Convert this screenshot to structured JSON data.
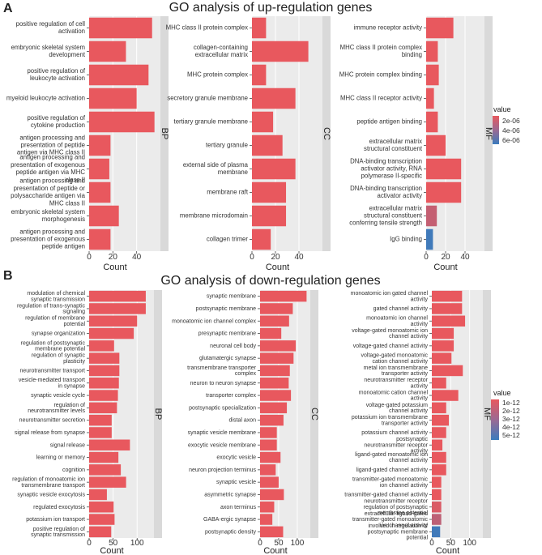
{
  "sections": [
    {
      "label": "A",
      "title": "GO analysis of up-regulation genes",
      "legend": {
        "title": "q value",
        "labels": [
          "2e-06",
          "4e-06",
          "6e-06"
        ]
      },
      "color_low": "#e8585e",
      "color_high": "#3b7bbd",
      "panels": [
        {
          "strip": "BP",
          "xlabel": "Count",
          "xticks": [
            0,
            20,
            40
          ],
          "xlim": [
            0,
            60
          ],
          "bars": [
            {
              "label": "positive regulation of cell\nactivation",
              "value": 53,
              "q": 5e-08
            },
            {
              "label": "embryonic skeletal system\ndevelopment",
              "value": 31,
              "q": 5e-08
            },
            {
              "label": "positive regulation of\nleukocyte activation",
              "value": 50,
              "q": 5e-08
            },
            {
              "label": "myeloid leukocyte activation",
              "value": 40,
              "q": 5e-08
            },
            {
              "label": "positive regulation of\ncytokine production",
              "value": 55,
              "q": 5e-08
            },
            {
              "label": "antigen processing and\npresentation of peptide\nantigen via MHC class II",
              "value": 18,
              "q": 5e-08
            },
            {
              "label": "antigen processing and\npresentation of exogenous\npeptide antigen via MHC\nclass II",
              "value": 17,
              "q": 5e-08
            },
            {
              "label": "antigen processing and\npresentation of peptide or\npolysaccharide antigen via\nMHC class II",
              "value": 18,
              "q": 5e-08
            },
            {
              "label": "embryonic skeletal system\nmorphogenesis",
              "value": 25,
              "q": 5e-08
            },
            {
              "label": "antigen processing and\npresentation of exogenous\npeptide antigen",
              "value": 18,
              "q": 5e-08
            }
          ]
        },
        {
          "strip": "CC",
          "xlabel": "Count",
          "xticks": [
            0,
            20,
            40
          ],
          "xlim": [
            0,
            60
          ],
          "bars": [
            {
              "label": "MHC class II protein complex",
              "value": 12,
              "q": 5e-08
            },
            {
              "label": "collagen-containing\nextracellular matrix",
              "value": 48,
              "q": 5e-08
            },
            {
              "label": "MHC protein complex",
              "value": 12,
              "q": 5e-08
            },
            {
              "label": "secretory granule membrane",
              "value": 37,
              "q": 5e-08
            },
            {
              "label": "tertiary granule membrane",
              "value": 18,
              "q": 5e-08
            },
            {
              "label": "tertiary granule",
              "value": 26,
              "q": 5e-08
            },
            {
              "label": "external side of plasma\nmembrane",
              "value": 37,
              "q": 5e-08
            },
            {
              "label": "membrane raft",
              "value": 29,
              "q": 5e-08
            },
            {
              "label": "membrane microdomain",
              "value": 29,
              "q": 5e-08
            },
            {
              "label": "collagen trimer",
              "value": 16,
              "q": 5e-08
            }
          ]
        },
        {
          "strip": "MF",
          "xlabel": "Count",
          "xticks": [
            0,
            20,
            40
          ],
          "xlim": [
            0,
            60
          ],
          "bars": [
            {
              "label": "immune receptor activity",
              "value": 28,
              "q": 5e-08
            },
            {
              "label": "MHC class II protein complex\nbinding",
              "value": 12,
              "q": 5e-08
            },
            {
              "label": "MHC protein complex binding",
              "value": 13,
              "q": 5e-08
            },
            {
              "label": "MHC class II receptor activity",
              "value": 8,
              "q": 5e-08
            },
            {
              "label": "peptide antigen binding",
              "value": 12,
              "q": 5e-08
            },
            {
              "label": "extracellular matrix\nstructural constituent",
              "value": 20,
              "q": 5e-08
            },
            {
              "label": "DNA-binding transcription\nactivator activity, RNA\npolymerase II-specific",
              "value": 36,
              "q": 5e-08
            },
            {
              "label": "DNA-binding transcription\nactivator activity",
              "value": 36,
              "q": 5e-08
            },
            {
              "label": "extracellular matrix\nstructural constituent\nconferring tensile strength",
              "value": 11,
              "q": 1.5e-06
            },
            {
              "label": "IgG binding",
              "value": 7,
              "q": 6.8e-06
            }
          ]
        }
      ]
    },
    {
      "label": "B",
      "title": "GO analysis of down-regulation genes",
      "legend": {
        "title": "q value",
        "labels": [
          "1e-12",
          "2e-12",
          "3e-12",
          "4e-12",
          "5e-12"
        ]
      },
      "color_low": "#e8585e",
      "color_high": "#3b7bbd",
      "panels": [
        {
          "strip": "BP",
          "xlabel": "Count",
          "xticks": [
            0,
            50,
            100
          ],
          "xlim": [
            0,
            135
          ],
          "bars": [
            {
              "label": "modulation of chemical\nsynaptic transmission",
              "value": 118,
              "q": 1e-14
            },
            {
              "label": "regulation of trans-synaptic\nsignaling",
              "value": 118,
              "q": 1e-14
            },
            {
              "label": "regulation of membrane\npotential",
              "value": 100,
              "q": 1e-14
            },
            {
              "label": "synapse organization",
              "value": 93,
              "q": 1e-14
            },
            {
              "label": "regulation of postsynaptic\nmembrane potential",
              "value": 52,
              "q": 1e-14
            },
            {
              "label": "regulation of synaptic\nplasticity",
              "value": 63,
              "q": 1e-14
            },
            {
              "label": "neurotransmitter transport",
              "value": 63,
              "q": 1e-14
            },
            {
              "label": "vesicle-mediated transport\nin synapse",
              "value": 62,
              "q": 1e-14
            },
            {
              "label": "synaptic vesicle cycle",
              "value": 60,
              "q": 1e-14
            },
            {
              "label": "regulation of\nneurotransmitter levels",
              "value": 58,
              "q": 1e-14
            },
            {
              "label": "neurotransmitter secretion",
              "value": 47,
              "q": 1e-14
            },
            {
              "label": "signal release from synapse",
              "value": 47,
              "q": 1e-14
            },
            {
              "label": "signal release",
              "value": 85,
              "q": 1e-14
            },
            {
              "label": "learning or memory",
              "value": 61,
              "q": 1e-14
            },
            {
              "label": "cognition",
              "value": 66,
              "q": 1e-14
            },
            {
              "label": "regulation of monoatomic ion\ntransmembrane transport",
              "value": 77,
              "q": 1e-14
            },
            {
              "label": "synaptic vesicle exocytosis",
              "value": 37,
              "q": 1e-14
            },
            {
              "label": "regulated exocytosis",
              "value": 51,
              "q": 1e-14
            },
            {
              "label": "potassium ion transport",
              "value": 53,
              "q": 1e-14
            },
            {
              "label": "positive regulation of\nsynaptic transmission",
              "value": 46,
              "q": 1e-14
            }
          ]
        },
        {
          "strip": "CC",
          "xlabel": "Count",
          "xticks": [
            0,
            50,
            100
          ],
          "xlim": [
            0,
            135
          ],
          "bars": [
            {
              "label": "synaptic membrane",
              "value": 125,
              "q": 1e-14
            },
            {
              "label": "postsynaptic membrane",
              "value": 88,
              "q": 1e-14
            },
            {
              "label": "monoatomic ion channel complex",
              "value": 78,
              "q": 1e-14
            },
            {
              "label": "presynaptic membrane",
              "value": 57,
              "q": 1e-14
            },
            {
              "label": "neuronal cell body",
              "value": 96,
              "q": 1e-14
            },
            {
              "label": "glutamatergic synapse",
              "value": 90,
              "q": 1e-14
            },
            {
              "label": "transmembrane transporter\ncomplex",
              "value": 80,
              "q": 1e-14
            },
            {
              "label": "neuron to neuron synapse",
              "value": 77,
              "q": 1e-14
            },
            {
              "label": "transporter complex",
              "value": 83,
              "q": 1e-14
            },
            {
              "label": "postsynaptic specialization",
              "value": 72,
              "q": 1e-14
            },
            {
              "label": "distal axon",
              "value": 63,
              "q": 1e-14
            },
            {
              "label": "synaptic vesicle membrane",
              "value": 45,
              "q": 1e-14
            },
            {
              "label": "exocytic vesicle membrane",
              "value": 45,
              "q": 1e-14
            },
            {
              "label": "exocytic vesicle",
              "value": 55,
              "q": 1e-14
            },
            {
              "label": "neuron projection terminus",
              "value": 42,
              "q": 1e-14
            },
            {
              "label": "synaptic vesicle",
              "value": 50,
              "q": 1e-14
            },
            {
              "label": "asymmetric synapse",
              "value": 64,
              "q": 1e-14
            },
            {
              "label": "axon terminus",
              "value": 38,
              "q": 1e-14
            },
            {
              "label": "GABA-ergic synapse",
              "value": 33,
              "q": 1e-14
            },
            {
              "label": "postsynaptic density",
              "value": 62,
              "q": 1e-14
            }
          ]
        },
        {
          "strip": "MF",
          "xlabel": "Count",
          "xticks": [
            0,
            50,
            100
          ],
          "xlim": [
            0,
            135
          ],
          "bars": [
            {
              "label": "monoatomic ion gated channel\nactivity",
              "value": 80,
              "q": 1e-14
            },
            {
              "label": "gated channel activity",
              "value": 80,
              "q": 1e-14
            },
            {
              "label": "monoatomic ion channel\nactivity",
              "value": 88,
              "q": 1e-14
            },
            {
              "label": "voltage-gated monoatomic ion\nchannel activity",
              "value": 58,
              "q": 1e-14
            },
            {
              "label": "voltage-gated channel activity",
              "value": 58,
              "q": 1e-14
            },
            {
              "label": "voltage-gated monoatomic\ncation channel activity",
              "value": 52,
              "q": 1e-14
            },
            {
              "label": "metal ion transmembrane\ntransporter activity",
              "value": 82,
              "q": 1e-14
            },
            {
              "label": "neurotransmitter receptor\nactivity",
              "value": 38,
              "q": 1e-14
            },
            {
              "label": "monoatomic cation channel\nactivity",
              "value": 70,
              "q": 1e-14
            },
            {
              "label": "voltage-gated potassium\nchannel activity",
              "value": 38,
              "q": 1e-14
            },
            {
              "label": "potassium ion transmembrane\ntransporter activity",
              "value": 45,
              "q": 1e-14
            },
            {
              "label": "potassium channel activity",
              "value": 38,
              "q": 1e-14
            },
            {
              "label": "postsynaptic\nneurotransmitter receptor\nactivity",
              "value": 28,
              "q": 1e-14
            },
            {
              "label": "ligand-gated monoatomic ion\nchannel activity",
              "value": 38,
              "q": 1e-14
            },
            {
              "label": "ligand-gated channel activity",
              "value": 38,
              "q": 1e-14
            },
            {
              "label": "transmitter-gated monoatomic\nion channel activity",
              "value": 25,
              "q": 1e-14
            },
            {
              "label": "transmitter-gated channel activity",
              "value": 25,
              "q": 1e-14
            },
            {
              "label": "neurotransmitter receptor\nregulation of postsynaptic\nmembrane potential",
              "value": 25,
              "q": 5e-13
            },
            {
              "label": "extracellular ligand-gated\ntransmitter-gated monoatomic\nion channel activity",
              "value": 25,
              "q": 1.5e-12
            },
            {
              "label": "involved in regulation of\npostsynaptic membrane\npotential",
              "value": 22,
              "q": 5.8e-12
            }
          ]
        }
      ]
    }
  ]
}
